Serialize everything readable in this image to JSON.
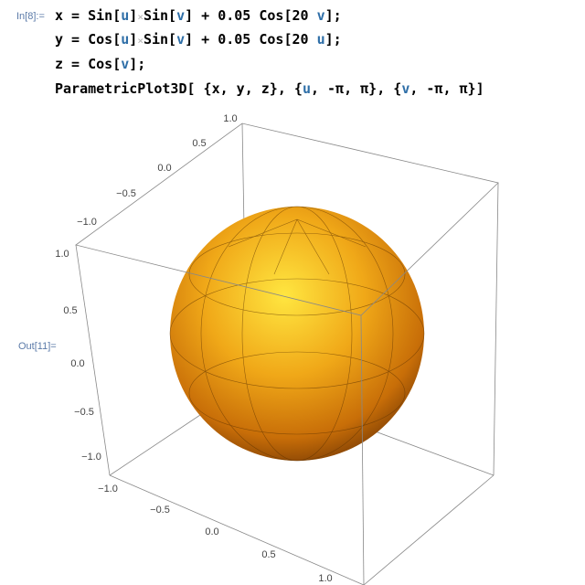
{
  "input": {
    "label": "In[8]:=",
    "lines": [
      [
        {
          "t": "x = Sin[",
          "c": "#000000"
        },
        {
          "t": "u",
          "c": "#2f6fa8"
        },
        {
          "t": "]",
          "c": "#000000"
        },
        {
          "t": "×",
          "c": "#b0b0b0"
        },
        {
          "t": "Sin[",
          "c": "#000000"
        },
        {
          "t": "v",
          "c": "#2f6fa8"
        },
        {
          "t": "] + 0.05 Cos[20 ",
          "c": "#000000"
        },
        {
          "t": "v",
          "c": "#2f6fa8"
        },
        {
          "t": "];",
          "c": "#000000"
        }
      ],
      [
        {
          "t": "y = Cos[",
          "c": "#000000"
        },
        {
          "t": "u",
          "c": "#2f6fa8"
        },
        {
          "t": "]",
          "c": "#000000"
        },
        {
          "t": "×",
          "c": "#b0b0b0"
        },
        {
          "t": "Sin[",
          "c": "#000000"
        },
        {
          "t": "v",
          "c": "#2f6fa8"
        },
        {
          "t": "] + 0.05 Cos[20 ",
          "c": "#000000"
        },
        {
          "t": "u",
          "c": "#2f6fa8"
        },
        {
          "t": "];",
          "c": "#000000"
        }
      ],
      [
        {
          "t": "z = Cos[",
          "c": "#000000"
        },
        {
          "t": "v",
          "c": "#2f6fa8"
        },
        {
          "t": "];",
          "c": "#000000"
        }
      ],
      [
        {
          "t": "ParametricPlot3D[ {x, y, z}, {",
          "c": "#000000"
        },
        {
          "t": "u",
          "c": "#2f6fa8"
        },
        {
          "t": ", -π, π}, {",
          "c": "#000000"
        },
        {
          "t": "v",
          "c": "#2f6fa8"
        },
        {
          "t": ", -π, π}]",
          "c": "#000000"
        }
      ]
    ]
  },
  "output": {
    "label": "Out[11]=",
    "top_axis_ticks": [
      "1.0",
      "0.5",
      "0.0",
      "−0.5",
      "−1.0"
    ],
    "left_axis_ticks": [
      "1.0",
      "0.5",
      "0.0",
      "−0.5",
      "−1.0"
    ],
    "bottom_axis_ticks": [
      "−1.0",
      "−0.5",
      "0.0",
      "0.5",
      "1.0"
    ]
  }
}
